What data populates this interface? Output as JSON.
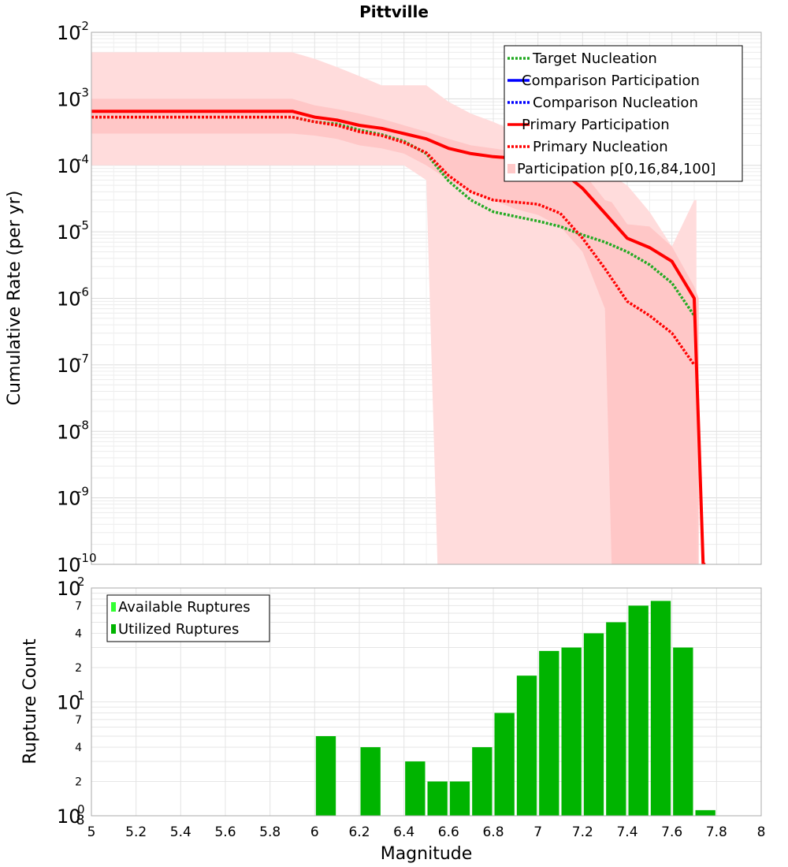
{
  "chart_data": [
    {
      "type": "line",
      "title": "Pittville",
      "ylabel": "Cumulative Rate (per yr)",
      "xlabel": "",
      "y_scale": "log",
      "xlim": [
        5,
        8
      ],
      "ylim": [
        1e-10,
        0.01
      ],
      "y_ticks": [
        {
          "base": "10",
          "exp": "-2"
        },
        {
          "base": "10",
          "exp": "-3"
        },
        {
          "base": "10",
          "exp": "-4"
        },
        {
          "base": "10",
          "exp": "-5"
        },
        {
          "base": "10",
          "exp": "-6"
        },
        {
          "base": "10",
          "exp": "-7"
        },
        {
          "base": "10",
          "exp": "-8"
        },
        {
          "base": "10",
          "exp": "-9"
        },
        {
          "base": "10",
          "exp": "-10"
        }
      ],
      "grid": true,
      "legend_position": "top-right",
      "legend": [
        {
          "label": "Target Nucleation",
          "color": "#22aa22",
          "style": "dotted"
        },
        {
          "label": "Comparison Participation",
          "color": "#0000ff",
          "style": "solid"
        },
        {
          "label": "Comparison Nucleation",
          "color": "#0000ff",
          "style": "dotted"
        },
        {
          "label": "Primary Participation",
          "color": "#ff0000",
          "style": "solid"
        },
        {
          "label": "Primary Nucleation",
          "color": "#ff0000",
          "style": "dotted"
        },
        {
          "label": "Participation p[0,16,84,100]",
          "color": "#ffc8c8",
          "style": "band"
        }
      ],
      "bands": {
        "outer": {
          "x": [
            5.0,
            5.9,
            6.0,
            6.1,
            6.2,
            6.3,
            6.4,
            6.5,
            6.55,
            6.6,
            6.7,
            6.8,
            6.9,
            7.0,
            7.1,
            7.2,
            7.3,
            7.33,
            7.4,
            7.5,
            7.6,
            7.7,
            7.71
          ],
          "lower": [
            0.0001,
            0.0001,
            0.0001,
            0.0001,
            0.0001,
            0.0001,
            0.0001,
            6e-05,
            1e-10,
            1e-10,
            1e-10,
            1e-10,
            1e-10,
            1e-10,
            1e-10,
            1e-10,
            1e-10,
            1e-10,
            1e-10,
            1e-10,
            1e-10,
            1e-10,
            1e-10
          ],
          "upper": [
            0.005,
            0.005,
            0.004,
            0.003,
            0.0022,
            0.0016,
            0.0016,
            0.0016,
            0.0012,
            0.0009,
            0.0006,
            0.00045,
            0.00032,
            0.00026,
            0.0002,
            0.00013,
            8e-05,
            7e-05,
            5e-05,
            2e-05,
            6e-06,
            3e-05,
            3e-05
          ]
        },
        "inner": {
          "x": [
            5.0,
            5.9,
            6.0,
            6.1,
            6.2,
            6.3,
            6.4,
            6.5,
            6.6,
            6.7,
            6.8,
            6.9,
            7.0,
            7.1,
            7.2,
            7.3,
            7.33,
            7.4,
            7.5,
            7.6,
            7.7,
            7.72
          ],
          "lower": [
            0.0003,
            0.0003,
            0.00028,
            0.00025,
            0.0002,
            0.00018,
            0.00015,
            0.0001,
            6e-05,
            4e-05,
            3e-05,
            2.2e-05,
            1.8e-05,
            1.2e-05,
            5e-06,
            7e-07,
            1e-10,
            1e-10,
            1e-10,
            1e-10,
            1e-10,
            1e-10
          ],
          "upper": [
            0.001,
            0.001,
            0.0008,
            0.0007,
            0.0006,
            0.0005,
            0.0004,
            0.00032,
            0.00025,
            0.0002,
            0.00018,
            0.00016,
            0.00015,
            0.00013,
            8e-05,
            3e-05,
            2.8e-05,
            1.3e-05,
            1.2e-05,
            6e-06,
            1.5e-06,
            1e-06
          ]
        }
      },
      "series": [
        {
          "name": "Primary Participation",
          "color": "#ff0000",
          "style": "solid",
          "x": [
            5.0,
            5.9,
            6.0,
            6.1,
            6.2,
            6.3,
            6.4,
            6.5,
            6.6,
            6.7,
            6.8,
            6.9,
            7.0,
            7.1,
            7.2,
            7.3,
            7.4,
            7.5,
            7.6,
            7.7,
            7.71,
            7.72,
            7.73,
            7.74,
            7.75
          ],
          "y": [
            0.00065,
            0.00065,
            0.00053,
            0.00048,
            0.0004,
            0.00036,
            0.0003,
            0.00025,
            0.00018,
            0.00015,
            0.000135,
            0.000128,
            0.000112,
            8.5e-05,
            4.5e-05,
            1.9e-05,
            8e-06,
            5.8e-06,
            3.6e-06,
            1e-06,
            1e-07,
            1e-08,
            1e-09,
            1e-10,
            1e-11
          ]
        },
        {
          "name": "Primary Nucleation",
          "color": "#ff0000",
          "style": "dotted",
          "x": [
            5.0,
            5.9,
            6.0,
            6.1,
            6.2,
            6.3,
            6.4,
            6.5,
            6.6,
            6.7,
            6.8,
            6.9,
            7.0,
            7.1,
            7.2,
            7.3,
            7.4,
            7.5,
            7.6,
            7.7
          ],
          "y": [
            0.00053,
            0.00053,
            0.00045,
            0.0004,
            0.00032,
            0.00028,
            0.00022,
            0.000155,
            7e-05,
            4e-05,
            3e-05,
            2.8e-05,
            2.6e-05,
            1.9e-05,
            8e-06,
            2.8e-06,
            9e-07,
            5.5e-07,
            3e-07,
            1e-07
          ]
        },
        {
          "name": "Target Nucleation",
          "color": "#22aa22",
          "style": "dotted",
          "x": [
            5.0,
            5.9,
            6.0,
            6.1,
            6.2,
            6.3,
            6.4,
            6.5,
            6.6,
            6.7,
            6.8,
            6.9,
            7.0,
            7.1,
            7.2,
            7.3,
            7.4,
            7.5,
            7.6,
            7.7
          ],
          "y": [
            0.00053,
            0.00053,
            0.00045,
            0.00042,
            0.00034,
            0.00029,
            0.00023,
            0.00015,
            5.8e-05,
            3e-05,
            2e-05,
            1.7e-05,
            1.45e-05,
            1.2e-05,
            9e-06,
            7e-06,
            5e-06,
            3.2e-06,
            1.7e-06,
            5.5e-07
          ]
        }
      ]
    },
    {
      "type": "bar",
      "title": "",
      "ylabel": "Rupture Count",
      "xlabel": "Magnitude",
      "y_scale": "log",
      "xlim": [
        5,
        8
      ],
      "ylim": [
        1,
        100
      ],
      "x_ticks": [
        "5",
        "5.2",
        "5.4",
        "5.6",
        "5.8",
        "6",
        "6.2",
        "6.4",
        "6.6",
        "6.8",
        "7",
        "7.2",
        "7.4",
        "7.6",
        "7.8",
        "8"
      ],
      "y_major_ticks": [
        {
          "base": "10",
          "exp": "0"
        },
        {
          "base": "10",
          "exp": "1"
        },
        {
          "base": "10",
          "exp": "2"
        }
      ],
      "y_minor_ticks": [
        {
          "label": "2",
          "value": 2
        },
        {
          "label": "4",
          "value": 4
        },
        {
          "label": "7",
          "value": 7
        },
        {
          "label": "2",
          "value": 20
        },
        {
          "label": "4",
          "value": 40
        },
        {
          "label": "7",
          "value": 70
        }
      ],
      "y_extra_label": "8",
      "grid": true,
      "legend_position": "top-left",
      "legend": [
        {
          "label": "Available Ruptures",
          "color": "#33ff33"
        },
        {
          "label": "Utilized Ruptures",
          "color": "#00b400"
        }
      ],
      "bar_color": "#00b400",
      "bin_width": 0.1,
      "bins": [
        {
          "x": 6.05,
          "count": 5
        },
        {
          "x": 6.25,
          "count": 4
        },
        {
          "x": 6.45,
          "count": 3
        },
        {
          "x": 6.55,
          "count": 2
        },
        {
          "x": 6.65,
          "count": 2
        },
        {
          "x": 6.75,
          "count": 4
        },
        {
          "x": 6.85,
          "count": 8
        },
        {
          "x": 6.95,
          "count": 17
        },
        {
          "x": 7.05,
          "count": 28
        },
        {
          "x": 7.15,
          "count": 30
        },
        {
          "x": 7.25,
          "count": 40
        },
        {
          "x": 7.35,
          "count": 50
        },
        {
          "x": 7.45,
          "count": 70
        },
        {
          "x": 7.55,
          "count": 77
        },
        {
          "x": 7.65,
          "count": 30
        },
        {
          "x": 7.75,
          "count": 1
        }
      ]
    }
  ]
}
